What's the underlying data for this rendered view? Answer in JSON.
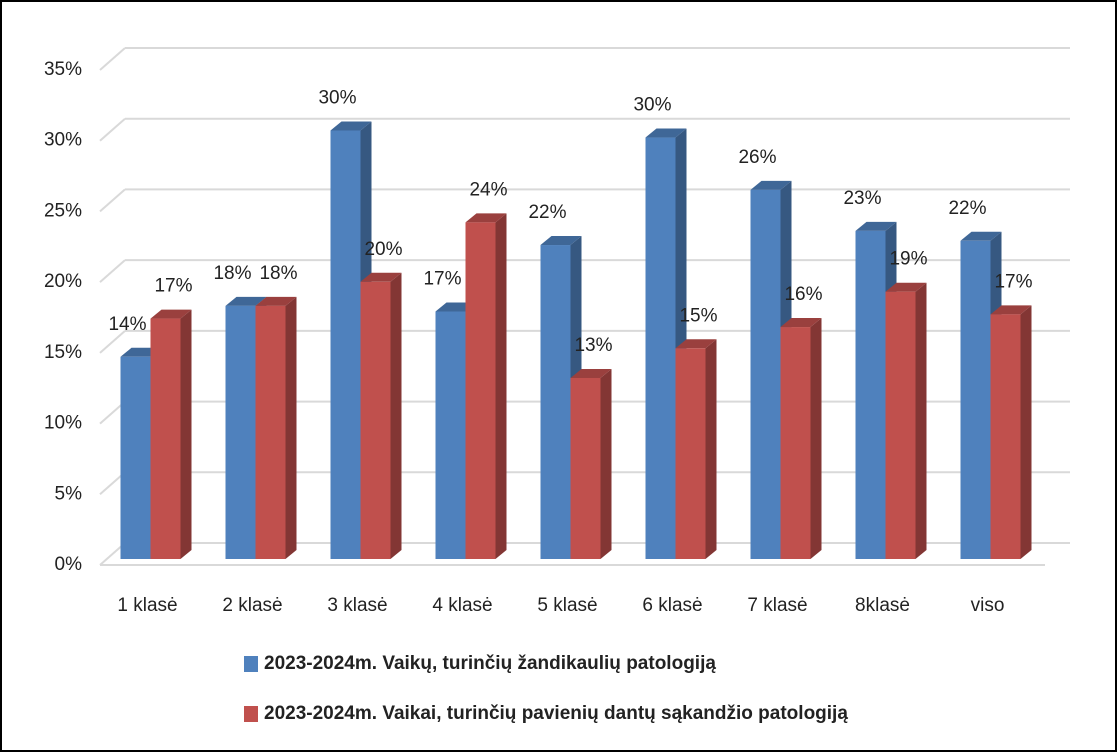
{
  "chart_data": {
    "type": "bar3d",
    "categories": [
      "1 klasė",
      "2 klasė",
      "3 klasė",
      "4 klasė",
      "5 klasė",
      "6 klasė",
      "7 klasė",
      "8klasė",
      "viso"
    ],
    "series": [
      {
        "name": "2023-2024m. Vaikų, turinčių žandikaulių patologiją",
        "color": "#4f81bd",
        "values": [
          14.3,
          17.9,
          30.3,
          17.5,
          22.2,
          29.8,
          26.1,
          23.2,
          22.5
        ],
        "value_labels": [
          "14%",
          "18%",
          "30%",
          "17%",
          "22%",
          "30%",
          "26%",
          "23%",
          "22%"
        ]
      },
      {
        "name": "2023-2024m. Vaikai, turinčių pavienių dantų sąkandžio patologiją",
        "color": "#c0504d",
        "values": [
          17.0,
          17.9,
          19.6,
          23.8,
          12.8,
          14.9,
          16.4,
          18.9,
          17.3
        ],
        "value_labels": [
          "17%",
          "18%",
          "20%",
          "24%",
          "13%",
          "15%",
          "16%",
          "19%",
          "17%"
        ]
      }
    ],
    "ylim": [
      0,
      35
    ],
    "yticks": [
      {
        "value": 0,
        "label": "0%"
      },
      {
        "value": 5,
        "label": "5%"
      },
      {
        "value": 10,
        "label": "10%"
      },
      {
        "value": 15,
        "label": "15%"
      },
      {
        "value": 20,
        "label": "20%"
      },
      {
        "value": 25,
        "label": "25%"
      },
      {
        "value": 30,
        "label": "30%"
      },
      {
        "value": 35,
        "label": "35%"
      }
    ],
    "grid": true,
    "legend": "bottom"
  }
}
